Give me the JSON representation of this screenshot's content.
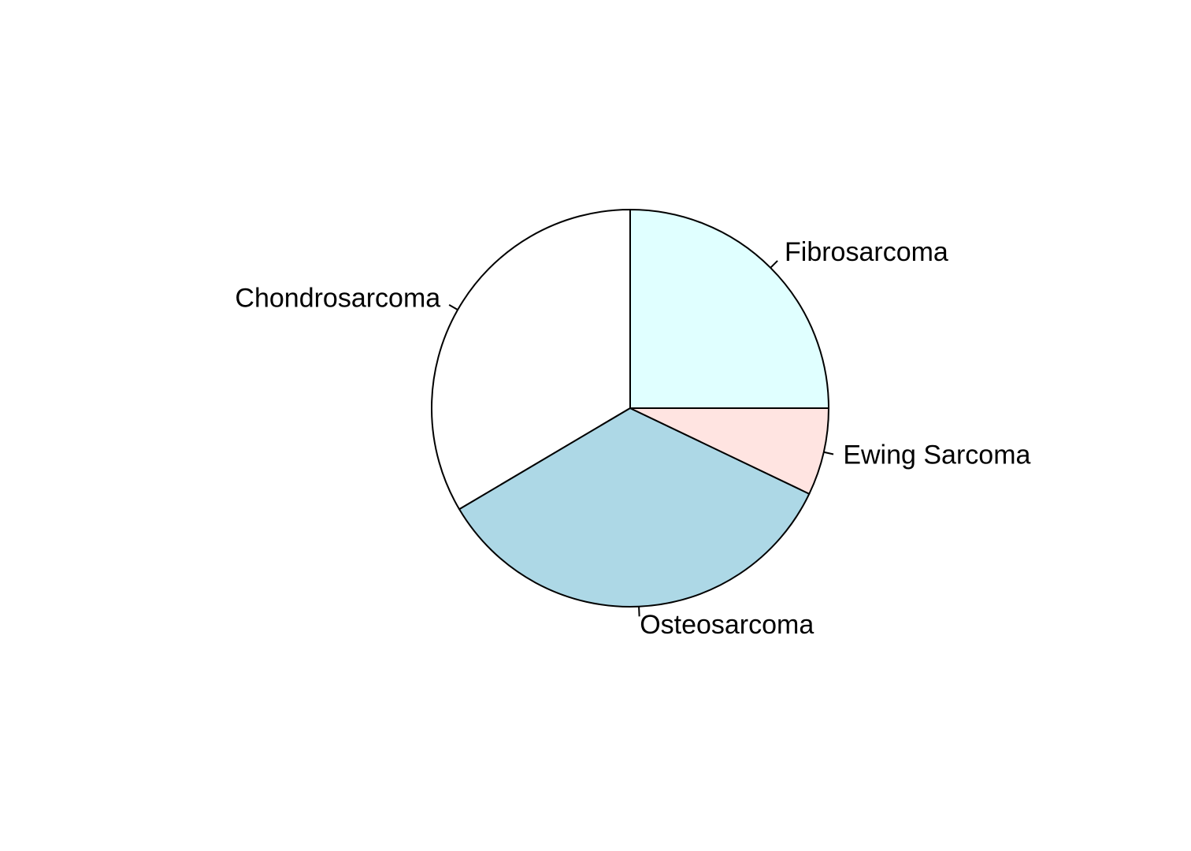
{
  "chart_data": {
    "type": "pie",
    "title": "",
    "slices": [
      {
        "label": "Fibrosarcoma",
        "value": 25,
        "color": "#E0FFFF"
      },
      {
        "label": "Chondrosarcoma",
        "value": 33.5,
        "color": "#FFFFFF"
      },
      {
        "label": "Osteosarcoma",
        "value": 34.4,
        "color": "#ADD8E6"
      },
      {
        "label": "Ewing Sarcoma",
        "value": 7.1,
        "color": "#FFE4E1"
      }
    ],
    "start_angle_deg": 0,
    "direction": "counterclockwise",
    "legend": "none"
  }
}
